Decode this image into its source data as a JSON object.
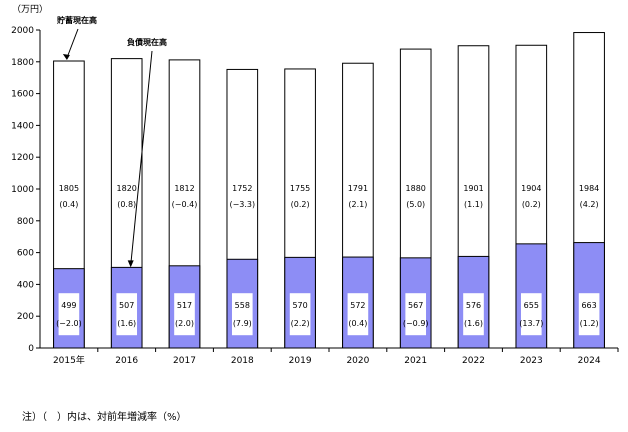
{
  "chart_data": {
    "type": "bar",
    "y_unit_label": "（万円）",
    "categories": [
      "2015年",
      "2016",
      "2017",
      "2018",
      "2019",
      "2020",
      "2021",
      "2022",
      "2023",
      "2024"
    ],
    "ylim": [
      0,
      2000
    ],
    "yticks": [
      0,
      200,
      400,
      600,
      800,
      1000,
      1200,
      1400,
      1600,
      1800,
      2000
    ],
    "grid": false,
    "series": [
      {
        "name": "貯蓄現在高",
        "color": "#ffffff",
        "values": [
          1805,
          1820,
          1812,
          1752,
          1755,
          1791,
          1880,
          1901,
          1904,
          1984
        ],
        "changes": [
          "(0.4)",
          "(0.8)",
          "(−0.4)",
          "(−3.3)",
          "(0.2)",
          "(2.1)",
          "(5.0)",
          "(1.1)",
          "(0.2)",
          "(4.2)"
        ]
      },
      {
        "name": "負債現在高",
        "color": "#8d8df5",
        "values": [
          499,
          507,
          517,
          558,
          570,
          572,
          567,
          576,
          655,
          663
        ],
        "changes": [
          "(−2.0)",
          "(1.6)",
          "(2.0)",
          "(7.9)",
          "(2.2)",
          "(0.4)",
          "(−0.9)",
          "(1.6)",
          "(13.7)",
          "(1.2)"
        ]
      }
    ],
    "annotations": [
      "貯蓄現在高",
      "負債現在高"
    ]
  },
  "footnote": "注）（　）内は、対前年増減率（%）"
}
